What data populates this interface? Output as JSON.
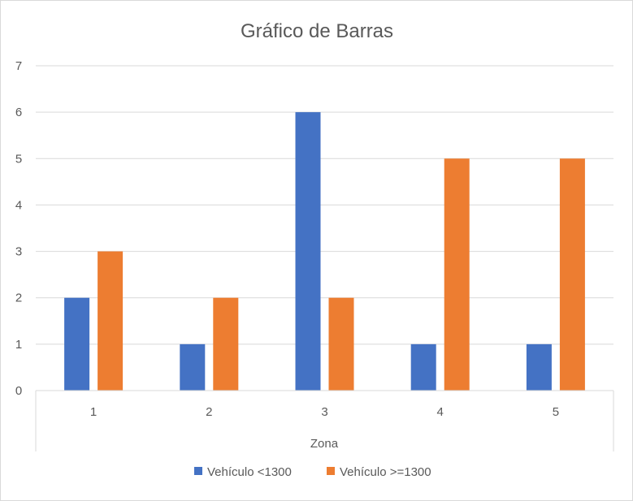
{
  "chart_data": {
    "type": "bar",
    "title": "Gráfico de Barras",
    "xlabel": "Zona",
    "ylabel": "",
    "categories": [
      "1",
      "2",
      "3",
      "4",
      "5"
    ],
    "series": [
      {
        "name": "Vehículo <1300",
        "color": "#4472C4",
        "values": [
          2,
          1,
          6,
          1,
          1
        ]
      },
      {
        "name": "Vehículo >=1300",
        "color": "#ED7D31",
        "values": [
          3,
          2,
          2,
          5,
          5
        ]
      }
    ],
    "ylim": [
      0,
      7
    ],
    "yticks": [
      "0",
      "1",
      "2",
      "3",
      "4",
      "5",
      "6",
      "7"
    ],
    "grid": true,
    "legend_position": "bottom"
  }
}
